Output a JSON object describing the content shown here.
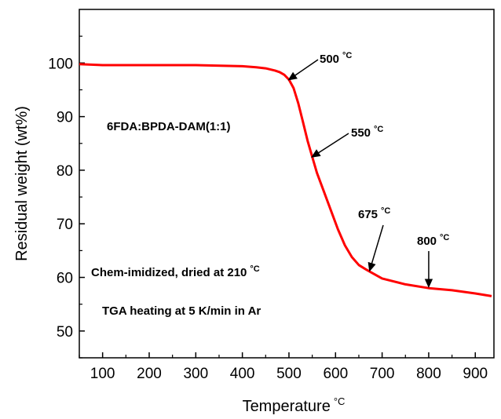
{
  "chart_data": {
    "type": "line",
    "title": "",
    "xlabel": "Temperature",
    "xlabel_unit": "°C",
    "ylabel": "Residual weight (wt%)",
    "xlim": [
      50,
      940
    ],
    "ylim": [
      45,
      110
    ],
    "x_ticks": [
      100,
      200,
      300,
      400,
      500,
      600,
      700,
      800,
      900
    ],
    "y_ticks": [
      50,
      60,
      70,
      80,
      90,
      100
    ],
    "grid": false,
    "line_color": "#ff0000",
    "series": [
      {
        "x": [
          50,
          100,
          200,
          300,
          400,
          430,
          450,
          470,
          480,
          490,
          500,
          510,
          520,
          530,
          540,
          550,
          560,
          575,
          590,
          605,
          620,
          635,
          650,
          665,
          675,
          700,
          750,
          800,
          850,
          900,
          935
        ],
        "y": [
          99.8,
          99.6,
          99.6,
          99.6,
          99.4,
          99.2,
          99.0,
          98.6,
          98.3,
          97.8,
          96.9,
          95.3,
          92.5,
          89.0,
          85.5,
          82.5,
          79.5,
          76.0,
          72.5,
          69.0,
          66.0,
          63.8,
          62.3,
          61.5,
          61.0,
          59.8,
          58.7,
          58.0,
          57.6,
          57.0,
          56.5
        ]
      }
    ],
    "annotations": [
      {
        "label": "500",
        "unit": "°C",
        "x": 500,
        "y": 96.9
      },
      {
        "label": "550",
        "unit": "°C",
        "x": 550,
        "y": 82.5
      },
      {
        "label": "675",
        "unit": "°C",
        "x": 675,
        "y": 61.0
      },
      {
        "label": "800",
        "unit": "°C",
        "x": 800,
        "y": 58.0
      }
    ],
    "texts": {
      "sample": "6FDA:BPDA-DAM(1:1)",
      "prep": "Chem-imidized, dried at 210",
      "prep_unit": "°C",
      "tga": "TGA heating at 5 K/min in Ar"
    }
  }
}
